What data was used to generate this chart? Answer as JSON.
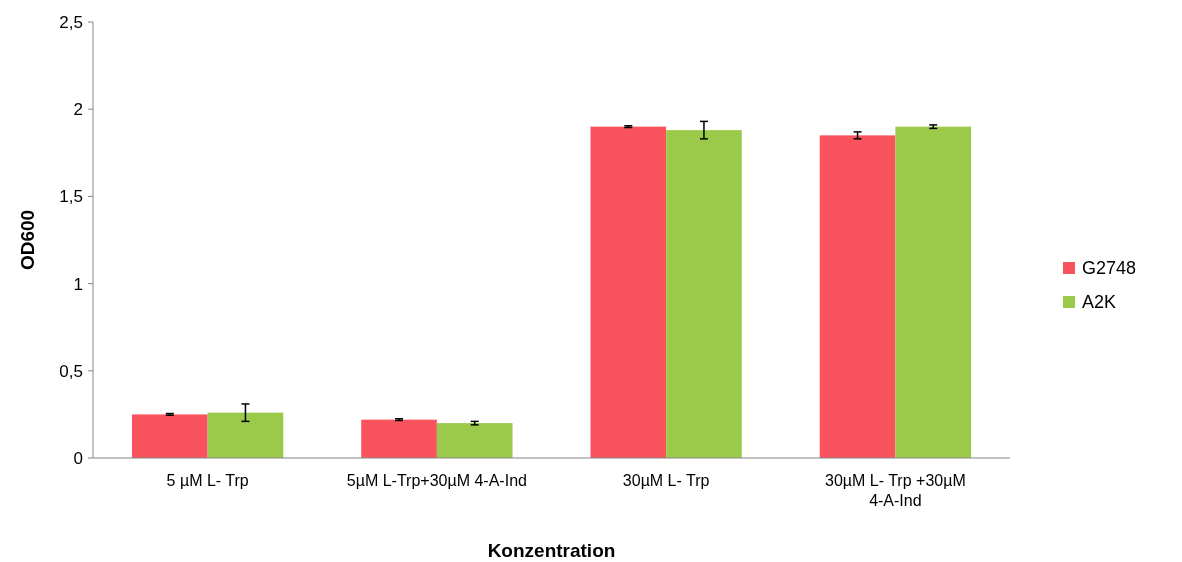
{
  "chart_data": {
    "type": "bar",
    "xlabel": "Konzentration",
    "ylabel": "OD600",
    "categories": [
      "5 µM L- Trp",
      "5µM L-Trp+30µM 4-A-Ind",
      "30µM L- Trp",
      "30µM L- Trp +30µM 4-A-Ind"
    ],
    "series": [
      {
        "name": "G2748",
        "color": "#f9545e",
        "values": [
          0.25,
          0.22,
          1.9,
          1.85
        ],
        "errors": [
          0.005,
          0.005,
          0.005,
          0.02
        ]
      },
      {
        "name": "A2K",
        "color": "#9bc94a",
        "values": [
          0.26,
          0.2,
          1.88,
          1.9
        ],
        "errors": [
          0.05,
          0.01,
          0.05,
          0.01
        ]
      }
    ],
    "ylim": [
      0,
      2.5
    ],
    "yticks": [
      0,
      {
        "value": 0.5,
        "label": "0,5"
      },
      1,
      {
        "value": 1.5,
        "label": "1,5"
      },
      2,
      {
        "value": 2.5,
        "label": "2,5"
      }
    ],
    "grid": false,
    "legend": "right"
  }
}
